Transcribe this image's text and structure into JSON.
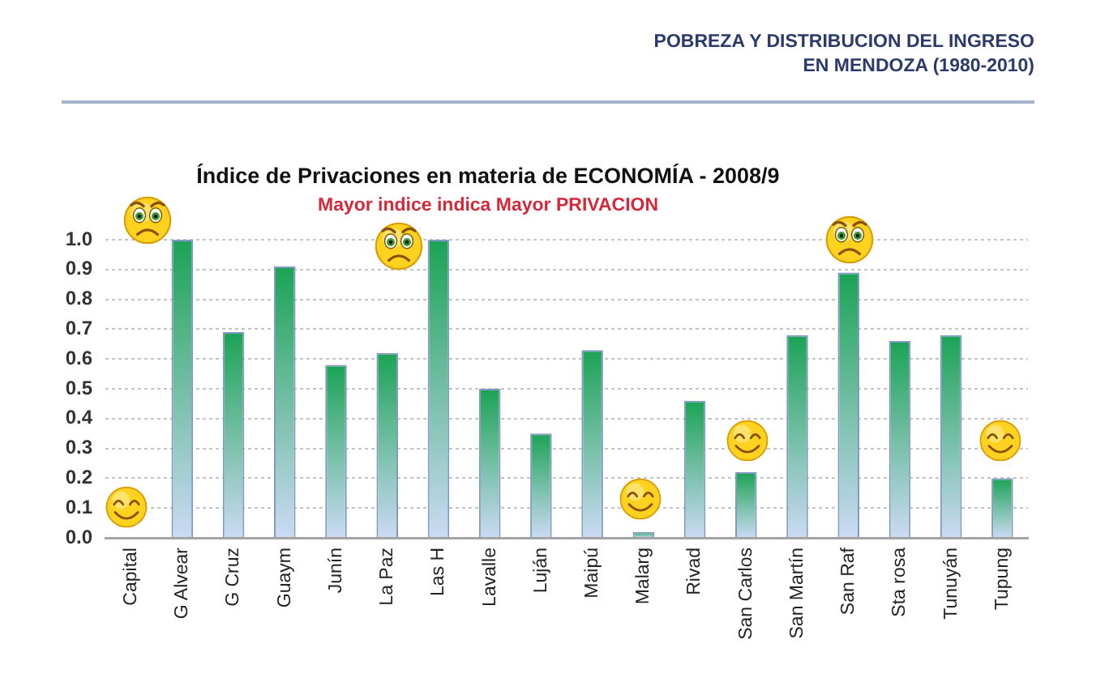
{
  "chart_data": {
    "type": "bar",
    "title": "Índice de Privaciones en materia de ECONOMÍA - 2008/9",
    "subtitle": "Mayor indice indica Mayor PRIVACION",
    "annotations": [
      "POBREZA Y DISTRIBUCION DEL INGRESO EN MENDOZA (1980-2010)"
    ],
    "categories": [
      "Capital",
      "G Alvear",
      "G Cruz",
      "Guaym",
      "Junín",
      "La Paz",
      "Las H",
      "Lavalle",
      "Luján",
      "Maipú",
      "Malarg",
      "Rivad",
      "San Carlos",
      "San Martín",
      "San Raf",
      "Sta rosa",
      "Tunuyán",
      "Tupung"
    ],
    "values": [
      0,
      1.0,
      0.69,
      0.91,
      0.58,
      0.62,
      1.0,
      0.5,
      0.35,
      0.63,
      0.02,
      0.46,
      0.22,
      0.68,
      0.89,
      0.66,
      0.68,
      0.2
    ],
    "color": "#1ba355",
    "ylim": [
      0,
      1
    ],
    "yticks": [
      {
        "value": 0,
        "label": "0.0"
      },
      0.1,
      0.2,
      0.3,
      0.4,
      0.5,
      0.6,
      0.7,
      0.8,
      0.9,
      {
        "value": 1,
        "label": "1.0"
      }
    ],
    "grid": "y"
  }
}
